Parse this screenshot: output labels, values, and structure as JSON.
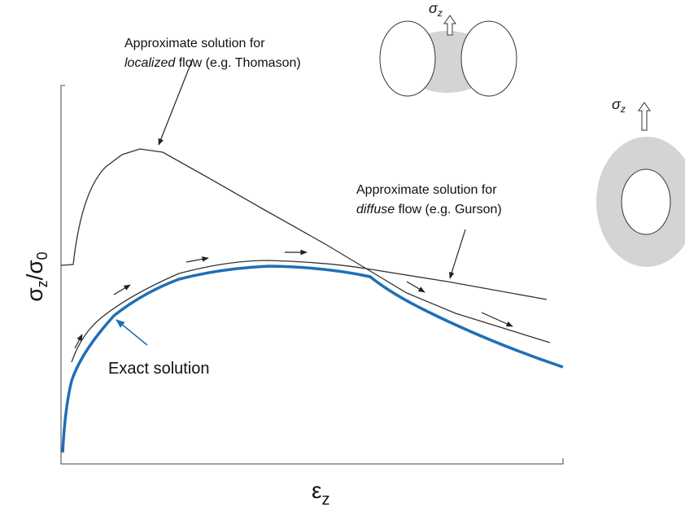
{
  "annotations": {
    "localized": {
      "line1": "Approximate solution for",
      "line2_italic": "localized",
      "line2_rest": " flow (e.g. Thomason)"
    },
    "diffuse": {
      "line1": "Approximate solution for",
      "line2_italic": "diffuse",
      "line2_rest": " flow (e.g. Gurson)"
    },
    "exact": "Exact solution"
  },
  "y_axis_label": {
    "numerator": {
      "symbol": "σ",
      "sub": "z"
    },
    "separator": "/",
    "denominator": {
      "symbol": "σ",
      "sub": "0"
    }
  },
  "x_axis_label": {
    "symbol": "ε",
    "sub": "z"
  },
  "stress_labels": {
    "top": {
      "symbol": "σ",
      "sub": "z"
    },
    "right": {
      "symbol": "σ",
      "sub": "z"
    }
  }
}
